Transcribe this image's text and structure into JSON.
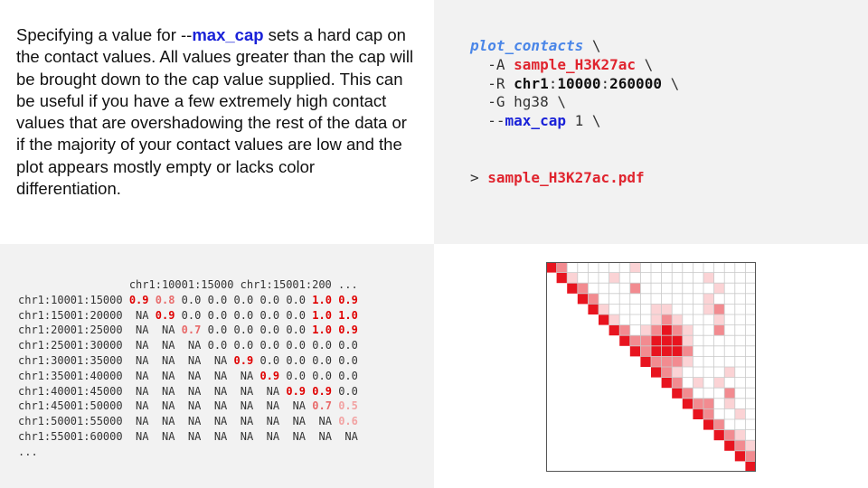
{
  "description": {
    "before": "Specifying a value for --",
    "keyword": "max_cap",
    "after": " sets a hard cap on the contact values. All values greater than the cap will be brought down to the cap value supplied. This can be useful if you have a few extremely high contact values that are overshadowing the rest of the data or if the majority of your contact values are low and the plot appears mostly empty or lacks color differentiation."
  },
  "command": {
    "name": "plot_contacts",
    "cont": " \\",
    "a_flag": "  -A ",
    "a_value": "sample_H3K27ac",
    "r_flag": "  -R ",
    "r_chr": "chr1",
    "r_sep1": ":",
    "r_start": "10000",
    "r_sep2": ":",
    "r_end": "260000",
    "g_line": "  -G hg38 \\",
    "cap_prefix": "  --",
    "cap_flag": "max_cap",
    "cap_value": " 1 \\"
  },
  "output": {
    "prompt": "> ",
    "file": "sample_H3K27ac.pdf"
  },
  "matrix": {
    "header": "                 chr1:10001:15000 chr1:15001:200 ...",
    "footer": "...",
    "rows": [
      {
        "label": "chr1:10001:15000",
        "cells": [
          "0.9",
          "0.8",
          "0.0",
          "0.0",
          "0.0",
          "0.0",
          "0.0",
          "1.0",
          "0.9"
        ]
      },
      {
        "label": "chr1:15001:20000",
        "cells": [
          "NA",
          "0.9",
          "0.0",
          "0.0",
          "0.0",
          "0.0",
          "0.0",
          "1.0",
          "1.0"
        ]
      },
      {
        "label": "chr1:20001:25000",
        "cells": [
          "NA",
          "NA",
          "0.7",
          "0.0",
          "0.0",
          "0.0",
          "0.0",
          "1.0",
          "0.9"
        ]
      },
      {
        "label": "chr1:25001:30000",
        "cells": [
          "NA",
          "NA",
          "NA",
          "0.0",
          "0.0",
          "0.0",
          "0.0",
          "0.0",
          "0.0"
        ]
      },
      {
        "label": "chr1:30001:35000",
        "cells": [
          "NA",
          "NA",
          "NA",
          "NA",
          "0.9",
          "0.0",
          "0.0",
          "0.0",
          "0.0"
        ]
      },
      {
        "label": "chr1:35001:40000",
        "cells": [
          "NA",
          "NA",
          "NA",
          "NA",
          "NA",
          "0.9",
          "0.0",
          "0.0",
          "0.0"
        ]
      },
      {
        "label": "chr1:40001:45000",
        "cells": [
          "NA",
          "NA",
          "NA",
          "NA",
          "NA",
          "NA",
          "0.9",
          "0.9",
          "0.0"
        ]
      },
      {
        "label": "chr1:45001:50000",
        "cells": [
          "NA",
          "NA",
          "NA",
          "NA",
          "NA",
          "NA",
          "NA",
          "0.7",
          "0.5"
        ]
      },
      {
        "label": "chr1:50001:55000",
        "cells": [
          "NA",
          "NA",
          "NA",
          "NA",
          "NA",
          "NA",
          "NA",
          "NA",
          "0.6"
        ]
      },
      {
        "label": "chr1:55001:60000",
        "cells": [
          "NA",
          "NA",
          "NA",
          "NA",
          "NA",
          "NA",
          "NA",
          "NA",
          "NA"
        ]
      }
    ]
  },
  "heatmap": {
    "size": 20,
    "colors": {
      "strong": "#e8141f",
      "medium": "#f28b90",
      "light": "#fbd3d5",
      "grid": "#c9c9c9",
      "border": "#555555"
    },
    "cells": [
      {
        "r": 0,
        "c": 1,
        "v": "medium"
      },
      {
        "r": 0,
        "c": 8,
        "v": "light"
      },
      {
        "r": 1,
        "c": 2,
        "v": "light"
      },
      {
        "r": 1,
        "c": 6,
        "v": "light"
      },
      {
        "r": 1,
        "c": 15,
        "v": "light"
      },
      {
        "r": 2,
        "c": 3,
        "v": "medium"
      },
      {
        "r": 2,
        "c": 8,
        "v": "medium"
      },
      {
        "r": 2,
        "c": 16,
        "v": "light"
      },
      {
        "r": 3,
        "c": 4,
        "v": "medium"
      },
      {
        "r": 3,
        "c": 15,
        "v": "light"
      },
      {
        "r": 4,
        "c": 5,
        "v": "light"
      },
      {
        "r": 4,
        "c": 10,
        "v": "light"
      },
      {
        "r": 4,
        "c": 11,
        "v": "light"
      },
      {
        "r": 4,
        "c": 15,
        "v": "light"
      },
      {
        "r": 4,
        "c": 16,
        "v": "medium"
      },
      {
        "r": 5,
        "c": 6,
        "v": "light"
      },
      {
        "r": 5,
        "c": 10,
        "v": "light"
      },
      {
        "r": 5,
        "c": 11,
        "v": "medium"
      },
      {
        "r": 5,
        "c": 12,
        "v": "light"
      },
      {
        "r": 5,
        "c": 16,
        "v": "light"
      },
      {
        "r": 6,
        "c": 7,
        "v": "medium"
      },
      {
        "r": 6,
        "c": 9,
        "v": "light"
      },
      {
        "r": 6,
        "c": 10,
        "v": "medium"
      },
      {
        "r": 6,
        "c": 11,
        "v": "strong"
      },
      {
        "r": 6,
        "c": 12,
        "v": "medium"
      },
      {
        "r": 6,
        "c": 13,
        "v": "light"
      },
      {
        "r": 6,
        "c": 16,
        "v": "medium"
      },
      {
        "r": 7,
        "c": 8,
        "v": "medium"
      },
      {
        "r": 7,
        "c": 9,
        "v": "medium"
      },
      {
        "r": 7,
        "c": 10,
        "v": "strong"
      },
      {
        "r": 7,
        "c": 11,
        "v": "strong"
      },
      {
        "r": 7,
        "c": 12,
        "v": "strong"
      },
      {
        "r": 7,
        "c": 13,
        "v": "light"
      },
      {
        "r": 8,
        "c": 9,
        "v": "medium"
      },
      {
        "r": 8,
        "c": 10,
        "v": "strong"
      },
      {
        "r": 8,
        "c": 11,
        "v": "strong"
      },
      {
        "r": 8,
        "c": 12,
        "v": "strong"
      },
      {
        "r": 8,
        "c": 13,
        "v": "medium"
      },
      {
        "r": 9,
        "c": 10,
        "v": "medium"
      },
      {
        "r": 9,
        "c": 11,
        "v": "medium"
      },
      {
        "r": 9,
        "c": 12,
        "v": "medium"
      },
      {
        "r": 9,
        "c": 13,
        "v": "light"
      },
      {
        "r": 10,
        "c": 11,
        "v": "medium"
      },
      {
        "r": 10,
        "c": 12,
        "v": "light"
      },
      {
        "r": 10,
        "c": 17,
        "v": "light"
      },
      {
        "r": 11,
        "c": 12,
        "v": "medium"
      },
      {
        "r": 11,
        "c": 14,
        "v": "light"
      },
      {
        "r": 11,
        "c": 16,
        "v": "light"
      },
      {
        "r": 12,
        "c": 13,
        "v": "medium"
      },
      {
        "r": 12,
        "c": 17,
        "v": "medium"
      },
      {
        "r": 13,
        "c": 14,
        "v": "medium"
      },
      {
        "r": 13,
        "c": 15,
        "v": "medium"
      },
      {
        "r": 13,
        "c": 17,
        "v": "light"
      },
      {
        "r": 14,
        "c": 15,
        "v": "medium"
      },
      {
        "r": 14,
        "c": 18,
        "v": "light"
      },
      {
        "r": 15,
        "c": 16,
        "v": "medium"
      },
      {
        "r": 16,
        "c": 17,
        "v": "medium"
      },
      {
        "r": 16,
        "c": 18,
        "v": "light"
      },
      {
        "r": 17,
        "c": 18,
        "v": "medium"
      },
      {
        "r": 17,
        "c": 19,
        "v": "light"
      },
      {
        "r": 18,
        "c": 19,
        "v": "medium"
      }
    ]
  }
}
